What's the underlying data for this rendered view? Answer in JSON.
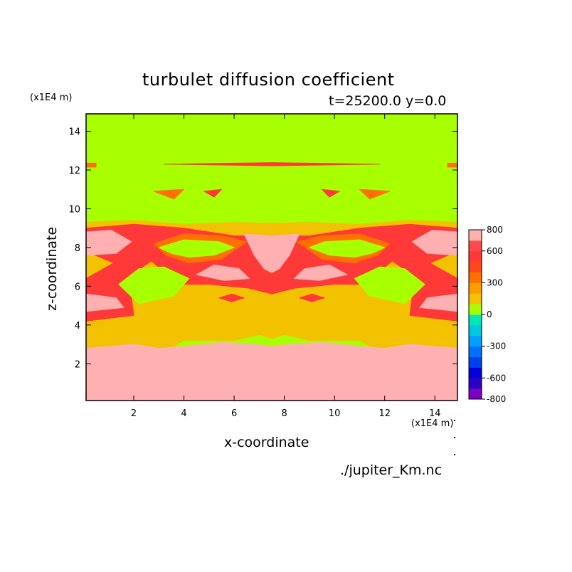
{
  "chart_data": {
    "type": "heatmap",
    "title": "turbulet diffusion coefficient",
    "subtitle": "t=25200.0 y=0.0",
    "xlabel": "x-coordinate",
    "ylabel": "z-coordinate",
    "x_unit": "(x1E4 m)",
    "z_unit": "(x1E4 m)",
    "xlim": [
      0.1,
      14.9
    ],
    "zlim": [
      0.1,
      14.9
    ],
    "xticks": [
      2,
      4,
      6,
      8,
      10,
      12,
      14
    ],
    "zticks": [
      2,
      4,
      6,
      8,
      10,
      12,
      14
    ],
    "colorbar": {
      "levels": [
        -800,
        -700,
        -600,
        -500,
        -400,
        -300,
        -200,
        -100,
        0,
        100,
        200,
        300,
        400,
        500,
        600,
        700,
        800
      ],
      "labels": [
        "800",
        "600",
        "300",
        "0",
        "-300",
        "-600",
        "-800"
      ],
      "label_values": [
        800,
        600,
        300,
        0,
        -300,
        -600,
        -800
      ],
      "colors": [
        "#7a00c8",
        "#2c00c8",
        "#0000dc",
        "#0040f0",
        "#0070ff",
        "#00a0ff",
        "#00c8e0",
        "#00e8b8",
        "#a8ff00",
        "#f2c200",
        "#ff9c00",
        "#ff7000",
        "#ff4818",
        "#ff3838",
        "#ff4a4a",
        "#ffb0b0"
      ]
    },
    "regions": [
      {
        "level": 100,
        "polygon": [
          [
            0.1,
            9.3
          ],
          [
            2,
            9.4
          ],
          [
            4,
            9.2
          ],
          [
            6,
            9.3
          ],
          [
            7.5,
            9.25
          ],
          [
            9,
            9.3
          ],
          [
            11,
            9.2
          ],
          [
            13,
            9.4
          ],
          [
            14.9,
            9.3
          ],
          [
            14.9,
            2.5
          ],
          [
            13,
            3
          ],
          [
            12,
            2.5
          ],
          [
            11,
            3.2
          ],
          [
            9,
            3.2
          ],
          [
            8,
            3.5
          ],
          [
            7.5,
            3.3
          ],
          [
            7,
            3.5
          ],
          [
            6,
            3.2
          ],
          [
            4,
            3.2
          ],
          [
            3,
            2.5
          ],
          [
            2,
            3
          ],
          [
            0.1,
            2.5
          ]
        ]
      },
      {
        "level": 500,
        "polygon": [
          [
            0.1,
            9.0
          ],
          [
            2,
            9.2
          ],
          [
            4,
            9.0
          ],
          [
            6,
            8.6
          ],
          [
            7.5,
            8.6
          ],
          [
            9,
            8.6
          ],
          [
            11,
            9.0
          ],
          [
            13,
            9.2
          ],
          [
            14.9,
            9.0
          ],
          [
            14.9,
            7.8
          ],
          [
            13.8,
            7.2
          ],
          [
            14.9,
            6.4
          ],
          [
            14.9,
            4.2
          ],
          [
            13,
            4.5
          ],
          [
            13.2,
            6.5
          ],
          [
            12.3,
            7.3
          ],
          [
            11.2,
            6.1
          ],
          [
            10,
            6.1
          ],
          [
            8.4,
            5.9
          ],
          [
            7.5,
            5.6
          ],
          [
            6.6,
            5.9
          ],
          [
            5,
            6.1
          ],
          [
            3.8,
            6.1
          ],
          [
            2.7,
            7.3
          ],
          [
            1.8,
            6.5
          ],
          [
            2,
            4.5
          ],
          [
            0.1,
            4.2
          ],
          [
            0.1,
            6.4
          ],
          [
            1.2,
            7.2
          ],
          [
            0.1,
            7.8
          ]
        ]
      },
      {
        "level": 300,
        "polygon": [
          [
            2.8,
            8.2
          ],
          [
            4,
            8.7
          ],
          [
            5.5,
            8.6
          ],
          [
            6.5,
            8.3
          ],
          [
            5.5,
            7.4
          ],
          [
            4.2,
            7.2
          ],
          [
            3.3,
            7.6
          ]
        ]
      },
      {
        "level": 300,
        "polygon": [
          [
            12.2,
            8.2
          ],
          [
            11,
            8.7
          ],
          [
            9.5,
            8.6
          ],
          [
            8.5,
            8.3
          ],
          [
            9.5,
            7.4
          ],
          [
            10.8,
            7.2
          ],
          [
            11.7,
            7.6
          ]
        ]
      },
      {
        "level": 0,
        "polygon": [
          [
            3.0,
            8.0
          ],
          [
            4,
            8.4
          ],
          [
            5.4,
            8.3
          ],
          [
            6.0,
            8.0
          ],
          [
            5.2,
            7.6
          ],
          [
            4.2,
            7.5
          ],
          [
            3.5,
            7.7
          ]
        ]
      },
      {
        "level": 0,
        "polygon": [
          [
            12.0,
            8.0
          ],
          [
            11,
            8.4
          ],
          [
            9.6,
            8.3
          ],
          [
            9.0,
            8.0
          ],
          [
            9.8,
            7.6
          ],
          [
            10.8,
            7.5
          ],
          [
            11.5,
            7.7
          ]
        ]
      },
      {
        "level": 0,
        "polygon": [
          [
            2.2,
            6.9
          ],
          [
            1.4,
            6.1
          ],
          [
            2.2,
            5.1
          ],
          [
            3.6,
            5.5
          ],
          [
            4.2,
            6.4
          ],
          [
            3.2,
            7.0
          ]
        ]
      },
      {
        "level": 0,
        "polygon": [
          [
            12.8,
            6.9
          ],
          [
            13.6,
            6.1
          ],
          [
            12.8,
            5.1
          ],
          [
            11.4,
            5.5
          ],
          [
            10.8,
            6.4
          ],
          [
            11.8,
            7.0
          ]
        ]
      },
      {
        "level": 700,
        "polygon": [
          [
            6.4,
            8.7
          ],
          [
            7.5,
            8.6
          ],
          [
            8.6,
            8.7
          ],
          [
            8.2,
            7.6
          ],
          [
            7.8,
            6.9
          ],
          [
            7.5,
            6.7
          ],
          [
            7.2,
            6.9
          ],
          [
            6.8,
            7.6
          ]
        ]
      },
      {
        "level": 700,
        "polygon": [
          [
            4.5,
            6.6
          ],
          [
            5.6,
            6.3
          ],
          [
            6.6,
            6.4
          ],
          [
            6.2,
            6.9
          ],
          [
            5.2,
            7.1
          ]
        ]
      },
      {
        "level": 700,
        "polygon": [
          [
            10.5,
            6.6
          ],
          [
            9.4,
            6.3
          ],
          [
            8.4,
            6.4
          ],
          [
            8.8,
            6.9
          ],
          [
            9.8,
            7.1
          ]
        ]
      },
      {
        "level": 700,
        "polygon": [
          [
            0.1,
            8.8
          ],
          [
            1.1,
            8.9
          ],
          [
            1.9,
            8.3
          ],
          [
            1.3,
            7.7
          ],
          [
            0.1,
            7.6
          ]
        ]
      },
      {
        "level": 700,
        "polygon": [
          [
            14.9,
            8.8
          ],
          [
            13.9,
            8.9
          ],
          [
            13.1,
            8.3
          ],
          [
            13.7,
            7.7
          ],
          [
            14.9,
            7.6
          ]
        ]
      },
      {
        "level": 700,
        "polygon": [
          [
            0.1,
            5.6
          ],
          [
            1.3,
            5.4
          ],
          [
            1.6,
            4.9
          ],
          [
            0.1,
            4.7
          ]
        ]
      },
      {
        "level": 700,
        "polygon": [
          [
            14.9,
            5.6
          ],
          [
            13.7,
            5.4
          ],
          [
            13.4,
            4.9
          ],
          [
            14.9,
            4.7
          ]
        ]
      },
      {
        "level": 500,
        "polygon": [
          [
            5.4,
            5.4
          ],
          [
            5.9,
            5.6
          ],
          [
            6.4,
            5.4
          ],
          [
            5.9,
            5.2
          ]
        ]
      },
      {
        "level": 500,
        "polygon": [
          [
            8.6,
            5.4
          ],
          [
            9.1,
            5.6
          ],
          [
            9.6,
            5.4
          ],
          [
            9.1,
            5.2
          ]
        ]
      },
      {
        "level": 500,
        "polygon": [
          [
            3.2,
            12.3
          ],
          [
            7.5,
            12.38
          ],
          [
            11.8,
            12.3
          ],
          [
            7.5,
            12.22
          ]
        ]
      },
      {
        "level": 300,
        "polygon": [
          [
            0.1,
            12.35
          ],
          [
            0.5,
            12.35
          ],
          [
            0.5,
            12.15
          ],
          [
            0.1,
            12.15
          ]
        ]
      },
      {
        "level": 300,
        "polygon": [
          [
            14.5,
            12.35
          ],
          [
            14.9,
            12.35
          ],
          [
            14.9,
            12.15
          ],
          [
            14.5,
            12.15
          ]
        ]
      },
      {
        "level": 300,
        "polygon": [
          [
            2.8,
            10.9
          ],
          [
            4.0,
            11.0
          ],
          [
            3.6,
            10.5
          ]
        ]
      },
      {
        "level": 300,
        "polygon": [
          [
            12.2,
            10.9
          ],
          [
            11.0,
            11.0
          ],
          [
            11.4,
            10.5
          ]
        ]
      },
      {
        "level": 500,
        "polygon": [
          [
            4.8,
            10.9
          ],
          [
            5.5,
            11.0
          ],
          [
            5.2,
            10.6
          ]
        ]
      },
      {
        "level": 500,
        "polygon": [
          [
            10.2,
            10.9
          ],
          [
            9.5,
            11.0
          ],
          [
            9.8,
            10.6
          ]
        ]
      },
      {
        "level": 700,
        "polygon": [
          [
            0.1,
            2.8
          ],
          [
            2,
            3.0
          ],
          [
            3,
            2.8
          ],
          [
            4,
            2.9
          ],
          [
            5.5,
            3.1
          ],
          [
            6.8,
            3.0
          ],
          [
            7.5,
            2.9
          ],
          [
            8.2,
            3.0
          ],
          [
            9.5,
            3.1
          ],
          [
            11,
            2.9
          ],
          [
            12,
            2.8
          ],
          [
            13,
            3.0
          ],
          [
            14.9,
            2.8
          ],
          [
            14.9,
            0.1
          ],
          [
            0.1,
            0.1
          ]
        ]
      },
      {
        "level": 800,
        "polygon": [
          [
            0.1,
            2.5
          ],
          [
            2,
            2.8
          ],
          [
            3,
            1.2
          ],
          [
            4,
            2.7
          ],
          [
            5.5,
            2.9
          ],
          [
            6.8,
            2.8
          ],
          [
            7.5,
            2.6
          ],
          [
            8.2,
            2.8
          ],
          [
            9.5,
            2.9
          ],
          [
            11,
            2.7
          ],
          [
            12,
            1.2
          ],
          [
            13,
            2.8
          ],
          [
            14.9,
            2.5
          ],
          [
            14.9,
            0.1
          ],
          [
            0.1,
            0.1
          ]
        ]
      },
      {
        "level": 700,
        "polygon": [
          [
            3.9,
            1.1
          ],
          [
            4.4,
            1.3
          ],
          [
            4.6,
            0.9
          ],
          [
            4.1,
            0.7
          ]
        ]
      },
      {
        "level": 700,
        "polygon": [
          [
            11.1,
            1.1
          ],
          [
            10.6,
            1.3
          ],
          [
            10.4,
            0.9
          ],
          [
            10.9,
            0.7
          ]
        ]
      },
      {
        "level": 700,
        "polygon": [
          [
            6.2,
            2.1
          ],
          [
            6.9,
            2.2
          ],
          [
            6.8,
            1.7
          ],
          [
            6.3,
            1.7
          ]
        ]
      },
      {
        "level": 700,
        "polygon": [
          [
            8.8,
            2.1
          ],
          [
            8.1,
            2.2
          ],
          [
            8.2,
            1.7
          ],
          [
            8.7,
            1.7
          ]
        ]
      },
      {
        "level": 700,
        "polygon": [
          [
            1.0,
            1.5
          ],
          [
            1.6,
            1.6
          ],
          [
            1.5,
            1.1
          ],
          [
            1.1,
            1.1
          ]
        ]
      },
      {
        "level": 700,
        "polygon": [
          [
            14.0,
            1.5
          ],
          [
            13.4,
            1.6
          ],
          [
            13.5,
            1.1
          ],
          [
            13.9,
            1.1
          ]
        ]
      },
      {
        "level": 700,
        "polygon": [
          [
            0.2,
            0.4
          ],
          [
            1.4,
            0.45
          ],
          [
            1.2,
            0.15
          ],
          [
            0.3,
            0.15
          ]
        ]
      },
      {
        "level": 700,
        "polygon": [
          [
            14.8,
            0.4
          ],
          [
            13.6,
            0.45
          ],
          [
            13.8,
            0.15
          ],
          [
            14.7,
            0.15
          ]
        ]
      }
    ],
    "background_level": 0
  },
  "source_file": "./jupiter_Km.nc"
}
